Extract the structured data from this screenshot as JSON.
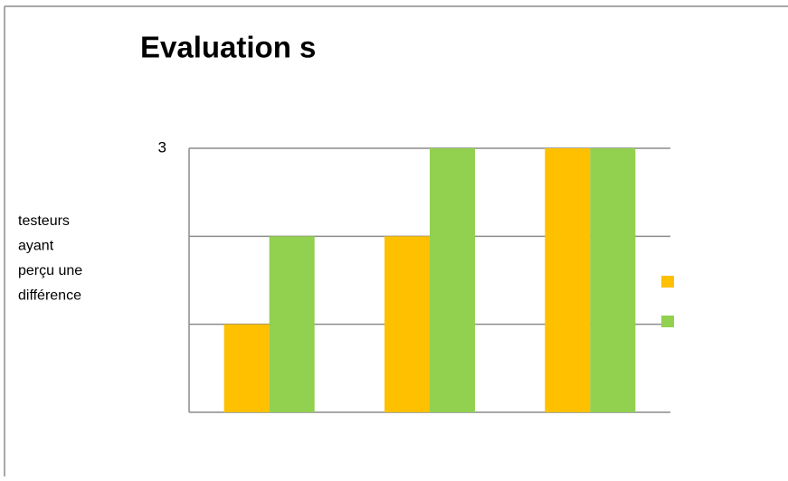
{
  "chart_data": {
    "type": "bar",
    "title": "Evaluation s",
    "ylabel": [
      "testeurs",
      "ayant",
      "perçu une",
      "différence"
    ],
    "categories": [
      null,
      null,
      null
    ],
    "series": [
      {
        "color": "#ffc000",
        "values": [
          1,
          2,
          3
        ]
      },
      {
        "color": "#92d050",
        "values": [
          2,
          3,
          3
        ]
      }
    ],
    "ylim": [
      0,
      3
    ],
    "yticks": [
      {
        "value": 0,
        "label": null
      },
      {
        "value": 1,
        "label": null
      },
      {
        "value": 2,
        "label": null
      },
      3
    ],
    "grid": true
  }
}
